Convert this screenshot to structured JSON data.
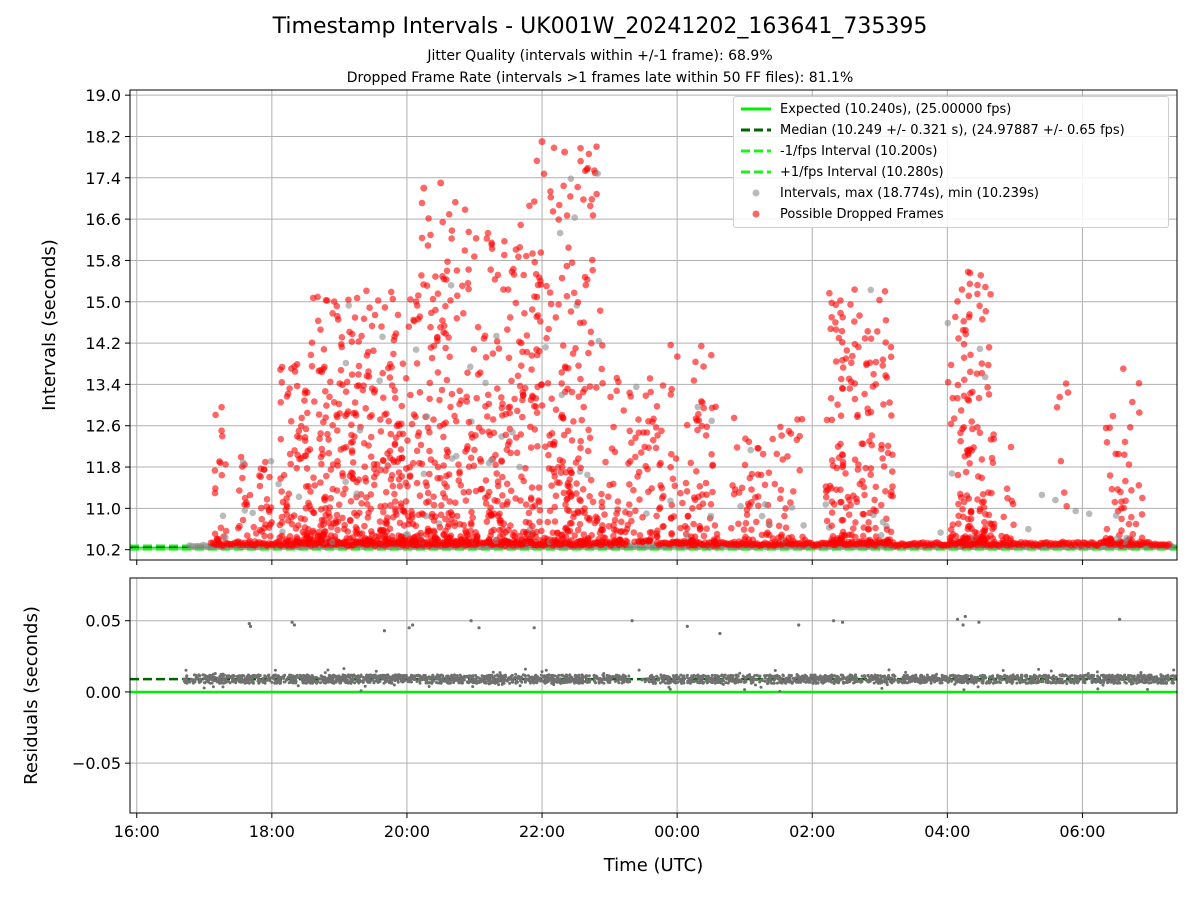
{
  "figure": {
    "title": "Timestamp Intervals - UK001W_20241202_163641_735395",
    "subtitle1": "Jitter Quality (intervals within +/-1 frame): 68.9%",
    "subtitle2": "Dropped Frame Rate (intervals >1 frames late within 50 FF files): 81.1%"
  },
  "colors": {
    "expected": "#00ee00",
    "median": "#006400",
    "fps_interval": "#22ee22",
    "intervals": "#8c8c8c",
    "dropped": "#ff0000",
    "residuals": "#707070"
  },
  "chart_data": [
    {
      "type": "scatter",
      "panel": "top",
      "title": "",
      "xlabel": "",
      "ylabel": "Intervals (seconds)",
      "x_range": [
        "2024-12-02 15:54",
        "2024-12-03 07:24"
      ],
      "ylim": [
        10.0,
        19.1
      ],
      "yticks": [
        10.2,
        11.0,
        11.8,
        12.6,
        13.4,
        14.2,
        15.0,
        15.8,
        16.6,
        17.4,
        18.2,
        19.0
      ],
      "ytick_labels": [
        "10.2",
        "11.0",
        "11.8",
        "12.6",
        "13.4",
        "14.2",
        "15.0",
        "15.8",
        "16.6",
        "17.4",
        "18.2",
        "19.0"
      ],
      "grid": true,
      "legend_position": "top-right",
      "lines": [
        {
          "name": "Expected (10.240s), (25.00000 fps)",
          "y": 10.24,
          "style": "solid"
        },
        {
          "name": "Median (10.249 +/- 0.321 s), (24.97887 +/- 0.65 fps)",
          "y": 10.249,
          "style": "dashed"
        },
        {
          "name": "-1/fps Interval (10.200s)",
          "y": 10.2,
          "style": "dashed"
        },
        {
          "name": "+1/fps Interval (10.280s)",
          "y": 10.28,
          "style": "dashed"
        }
      ],
      "series": [
        {
          "name": "Intervals, max (18.774s), min (10.239s)",
          "kind": "intervals",
          "max": 18.774,
          "min": 10.239
        },
        {
          "name": "Possible Dropped Frames",
          "kind": "dropped"
        }
      ],
      "activity_clusters": [
        {
          "start": 17.15,
          "end": 17.35,
          "max": 13.2,
          "density": 0.4
        },
        {
          "start": 17.5,
          "end": 18.0,
          "max": 12.0,
          "density": 0.35
        },
        {
          "start": 18.1,
          "end": 18.5,
          "max": 14.2,
          "density": 0.7
        },
        {
          "start": 18.5,
          "end": 19.5,
          "max": 15.3,
          "density": 1.0
        },
        {
          "start": 19.5,
          "end": 20.2,
          "max": 15.2,
          "density": 1.0
        },
        {
          "start": 20.2,
          "end": 21.0,
          "max": 17.3,
          "density": 1.0
        },
        {
          "start": 21.0,
          "end": 21.8,
          "max": 16.5,
          "density": 0.9
        },
        {
          "start": 21.8,
          "end": 22.9,
          "max": 18.1,
          "density": 1.0
        },
        {
          "start": 22.9,
          "end": 23.8,
          "max": 13.6,
          "density": 0.5
        },
        {
          "start": 23.9,
          "end": 24.6,
          "max": 14.2,
          "density": 0.5
        },
        {
          "start": 24.8,
          "end": 25.9,
          "max": 12.9,
          "density": 0.3
        },
        {
          "start": 26.2,
          "end": 27.2,
          "max": 15.3,
          "density": 0.75
        },
        {
          "start": 28.0,
          "end": 28.7,
          "max": 15.7,
          "density": 0.9
        },
        {
          "start": 28.8,
          "end": 29.0,
          "max": 12.2,
          "density": 0.25
        },
        {
          "start": 29.6,
          "end": 29.8,
          "max": 13.9,
          "density": 0.15
        },
        {
          "start": 30.3,
          "end": 30.9,
          "max": 13.9,
          "density": 0.35
        }
      ],
      "labeled_points": [
        {
          "x": "22:00",
          "y": 18.1
        },
        {
          "x": "22:20",
          "y": 17.9
        },
        {
          "x": "20:30",
          "y": 17.3
        },
        {
          "x": "20:15",
          "y": 17.2
        }
      ]
    },
    {
      "type": "scatter",
      "panel": "bottom",
      "title": "",
      "xlabel": "Time (UTC)",
      "ylabel": "Residuals (seconds)",
      "x_range": [
        "2024-12-02 15:54",
        "2024-12-03 07:24"
      ],
      "ylim": [
        -0.085,
        0.08
      ],
      "yticks": [
        -0.05,
        0.0,
        0.05
      ],
      "ytick_labels": [
        "−0.05",
        "0.00",
        "0.05"
      ],
      "xticks": [
        "16:00",
        "18:00",
        "20:00",
        "22:00",
        "00:00",
        "02:00",
        "04:00",
        "06:00"
      ],
      "grid": true,
      "lines": [
        {
          "name": "zero",
          "y": 0.0,
          "style": "solid"
        },
        {
          "name": "median offset",
          "y": 0.009,
          "style": "dashed"
        }
      ],
      "band": {
        "start": 16.7,
        "end": 31.4,
        "center": 0.009,
        "spread": 0.003,
        "gap": [
          23.3,
          23.6
        ]
      },
      "outliers": [
        {
          "x": "17:40",
          "y": 0.048
        },
        {
          "x": "17:41",
          "y": 0.046
        },
        {
          "x": "18:18",
          "y": 0.049
        },
        {
          "x": "18:20",
          "y": 0.047
        },
        {
          "x": "19:40",
          "y": 0.043
        },
        {
          "x": "20:02",
          "y": 0.045
        },
        {
          "x": "20:05",
          "y": 0.047
        },
        {
          "x": "20:57",
          "y": 0.05
        },
        {
          "x": "21:04",
          "y": 0.045
        },
        {
          "x": "21:53",
          "y": 0.045
        },
        {
          "x": "23:20",
          "y": 0.05
        },
        {
          "x": "00:09",
          "y": 0.046
        },
        {
          "x": "00:38",
          "y": 0.041
        },
        {
          "x": "01:48",
          "y": 0.047
        },
        {
          "x": "02:19",
          "y": 0.05
        },
        {
          "x": "02:27",
          "y": 0.049
        },
        {
          "x": "04:09",
          "y": 0.051
        },
        {
          "x": "04:14",
          "y": 0.047
        },
        {
          "x": "04:16",
          "y": 0.053
        },
        {
          "x": "04:28",
          "y": 0.049
        },
        {
          "x": "06:33",
          "y": 0.051
        }
      ]
    }
  ]
}
